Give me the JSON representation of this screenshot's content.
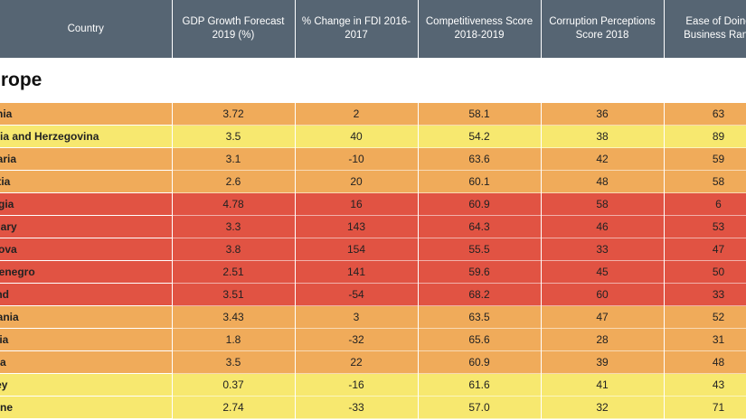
{
  "headers": [
    "Country",
    "GDP Growth Forecast 2019 (%)",
    "% Change in FDI 2016-2017",
    "Competitiveness Score 2018-2019",
    "Corruption Perceptions Score 2018",
    "Ease of Doing Business Rank"
  ],
  "region": "Europe",
  "rows": [
    {
      "country": "Albania",
      "gdp": "3.72",
      "fdi": "2",
      "comp": "58.1",
      "corr": "36",
      "ease": "63",
      "tone": "mid"
    },
    {
      "country": "Bosnia and Herzegovina",
      "gdp": "3.5",
      "fdi": "40",
      "comp": "54.2",
      "corr": "38",
      "ease": "89",
      "tone": "light"
    },
    {
      "country": "Bulgaria",
      "gdp": "3.1",
      "fdi": "-10",
      "comp": "63.6",
      "corr": "42",
      "ease": "59",
      "tone": "mid"
    },
    {
      "country": "Croatia",
      "gdp": "2.6",
      "fdi": "20",
      "comp": "60.1",
      "corr": "48",
      "ease": "58",
      "tone": "mid"
    },
    {
      "country": "Georgia",
      "gdp": "4.78",
      "fdi": "16",
      "comp": "60.9",
      "corr": "58",
      "ease": "6",
      "tone": "red"
    },
    {
      "country": "Hungary",
      "gdp": "3.3",
      "fdi": "143",
      "comp": "64.3",
      "corr": "46",
      "ease": "53",
      "tone": "red"
    },
    {
      "country": "Moldova",
      "gdp": "3.8",
      "fdi": "154",
      "comp": "55.5",
      "corr": "33",
      "ease": "47",
      "tone": "red"
    },
    {
      "country": "Montenegro",
      "gdp": "2.51",
      "fdi": "141",
      "comp": "59.6",
      "corr": "45",
      "ease": "50",
      "tone": "red"
    },
    {
      "country": "Poland",
      "gdp": "3.51",
      "fdi": "-54",
      "comp": "68.2",
      "corr": "60",
      "ease": "33",
      "tone": "red"
    },
    {
      "country": "Romania",
      "gdp": "3.43",
      "fdi": "3",
      "comp": "63.5",
      "corr": "47",
      "ease": "52",
      "tone": "mid"
    },
    {
      "country": "Russia",
      "gdp": "1.8",
      "fdi": "-32",
      "comp": "65.6",
      "corr": "28",
      "ease": "31",
      "tone": "mid"
    },
    {
      "country": "Serbia",
      "gdp": "3.5",
      "fdi": "22",
      "comp": "60.9",
      "corr": "39",
      "ease": "48",
      "tone": "mid"
    },
    {
      "country": "Turkey",
      "gdp": "0.37",
      "fdi": "-16",
      "comp": "61.6",
      "corr": "41",
      "ease": "43",
      "tone": "light"
    },
    {
      "country": "Ukraine",
      "gdp": "2.74",
      "fdi": "-33",
      "comp": "57.0",
      "corr": "32",
      "ease": "71",
      "tone": "light"
    }
  ]
}
